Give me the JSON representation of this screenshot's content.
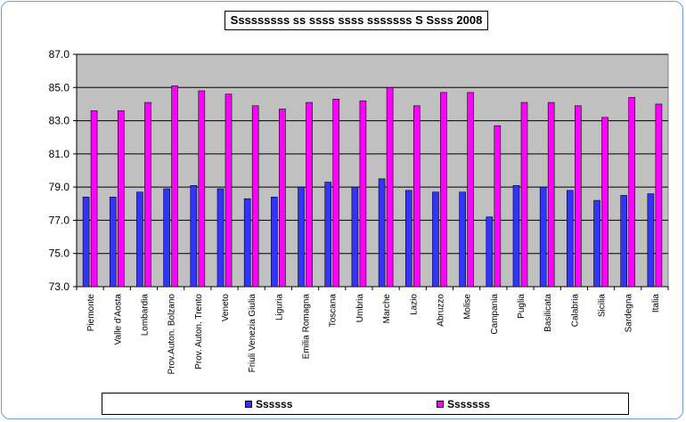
{
  "chart_data": {
    "type": "bar",
    "title": "Sssssssss ss ssss ssss sssssss S Ssss 2008",
    "categories": [
      "Piemonte",
      "Valle d'Aosta",
      "Lombardia",
      "Prov.Auton. Bolzano",
      "Prov. Auton. Trento",
      "Veneto",
      "Friuli Venezia Giulia",
      "Liguria",
      "Emilia Romagna",
      "Toscana",
      "Umbria",
      "Marche",
      "Lazio",
      "Abruzzo",
      "Molise",
      "Campania",
      "Puglia",
      "Basilicata",
      "Calabria",
      "Sicilia",
      "Sardegna",
      "Italia"
    ],
    "series": [
      {
        "name": "Ssssss",
        "color": "#3333ff",
        "values": [
          78.4,
          78.4,
          78.7,
          78.9,
          79.1,
          78.9,
          78.3,
          78.4,
          79.0,
          79.3,
          79.0,
          79.5,
          78.8,
          78.7,
          78.7,
          77.2,
          79.1,
          79.0,
          78.8,
          78.2,
          78.5,
          78.6
        ]
      },
      {
        "name": "Sssssss",
        "color": "#ff00ff",
        "values": [
          83.6,
          83.6,
          84.1,
          85.1,
          84.8,
          84.6,
          83.9,
          83.7,
          84.1,
          84.3,
          84.2,
          85.0,
          83.9,
          84.7,
          84.7,
          82.7,
          84.1,
          84.1,
          83.9,
          83.2,
          84.4,
          84.0
        ]
      }
    ],
    "ylim": [
      73.0,
      87.0
    ],
    "yticks": [
      "73.0",
      "75.0",
      "77.0",
      "79.0",
      "81.0",
      "83.0",
      "85.0",
      "87.0"
    ],
    "grid": true,
    "legend_position": "bottom",
    "plot_background": "#c0c0c0"
  }
}
